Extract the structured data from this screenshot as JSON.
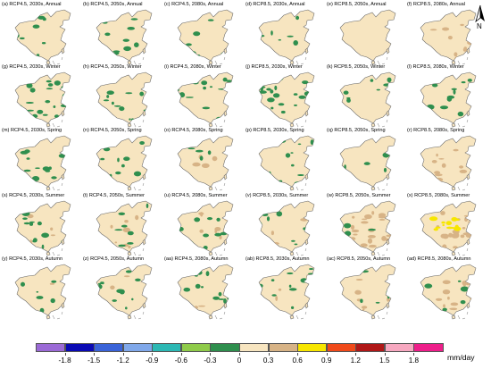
{
  "map": {
    "labels": {
      "panels": [
        "(a) RCP4.5, 2030s, Annual",
        "(b) RCP4.5, 2050s, Annual",
        "(c) RCP4.5, 2080s, Annual",
        "(d) RCP8.5, 2030s, Annual",
        "(e) RCP8.5, 2050s, Annual",
        "(f) RCP8.5, 2080s, Annual",
        "(g) RCP4.5, 2030s, Winter",
        "(h) RCP4.5, 2050s, Winter",
        "(i) RCP4.5, 2080s, Winter",
        "(j) RCP8.5, 2030s, Winter",
        "(k) RCP8.5, 2050s, Winter",
        "(l) RCP8.5, 2080s, Winter",
        "(m) RCP4.5, 2030s, Spring",
        "(n) RCP4.5, 2050s, Spring",
        "(o) RCP4.5, 2080s, Spring",
        "(p) RCP8.5, 2030s, Spring",
        "(q) RCP8.5, 2050s, Spring",
        "(r) RCP8.5, 2080s, Spring",
        "(s) RCP4.5, 2030s, Summer",
        "(t) RCP4.5, 2050s, Summer",
        "(u) RCP4.5, 2080s, Summer",
        "(v) RCP8.5, 2030s, Summer",
        "(w) RCP8.5, 2050s, Summer",
        "(x) RCP8.5, 2080s, Summer",
        "(y) RCP4.5, 2030s, Autumn",
        "(z) RCP4.5, 2050s, Autumn",
        "(aa) RCP4.5, 2080s, Autumn",
        "(ab) RCP8.5, 2030s, Autumn",
        "(ac) RCP8.5, 2050s, Autumn",
        "(ad) RCP8.5, 2080s, Autumn"
      ],
      "north": "N",
      "unit": "mm/day",
      "colorbar_ticks": [
        "-1.8",
        "-1.5",
        "-1.2",
        "-0.9",
        "-0.6",
        "-0.3",
        "0",
        "0.3",
        "0.6",
        "0.9",
        "1.2",
        "1.5",
        "1.8"
      ]
    },
    "colorbar_colors": [
      "#9b6ad6",
      "#0a0ab4",
      "#3a63d8",
      "#80a8ea",
      "#2cb8b4",
      "#8fcb4a",
      "#2f8f4e",
      "#f7e5c0",
      "#d7b386",
      "#f7e600",
      "#f04a1a",
      "#b01818",
      "#f7a8c0",
      "#ee1e8a"
    ],
    "panel_fill": {
      "land": "#f7e5c0",
      "dry": "#2f8f4e",
      "wet_light": "#d7b386",
      "wet_strong": "#f7e600"
    },
    "panel_fill_levels": [
      [
        0.35,
        0.0,
        0.0
      ],
      [
        0.4,
        0.0,
        0.0
      ],
      [
        0.28,
        0.0,
        0.0
      ],
      [
        0.32,
        0.0,
        0.0
      ],
      [
        0.05,
        0.0,
        0.0
      ],
      [
        0.0,
        0.35,
        0.0
      ],
      [
        0.9,
        0.0,
        0.0
      ],
      [
        0.75,
        0.0,
        0.0
      ],
      [
        0.65,
        0.0,
        0.0
      ],
      [
        0.8,
        0.0,
        0.0
      ],
      [
        0.3,
        0.0,
        0.0
      ],
      [
        0.45,
        0.0,
        0.0
      ],
      [
        0.5,
        0.0,
        0.0
      ],
      [
        0.45,
        0.0,
        0.0
      ],
      [
        0.15,
        0.2,
        0.0
      ],
      [
        0.55,
        0.0,
        0.0
      ],
      [
        0.2,
        0.0,
        0.0
      ],
      [
        0.0,
        0.45,
        0.0
      ],
      [
        0.45,
        0.15,
        0.0
      ],
      [
        0.35,
        0.3,
        0.0
      ],
      [
        0.45,
        0.3,
        0.0
      ],
      [
        0.4,
        0.1,
        0.0
      ],
      [
        0.1,
        0.85,
        0.0
      ],
      [
        0.05,
        0.75,
        0.45
      ],
      [
        0.35,
        0.05,
        0.0
      ],
      [
        0.45,
        0.15,
        0.0
      ],
      [
        0.45,
        0.1,
        0.0
      ],
      [
        0.5,
        0.1,
        0.0
      ],
      [
        0.3,
        0.35,
        0.0
      ],
      [
        0.3,
        0.45,
        0.0
      ]
    ]
  }
}
